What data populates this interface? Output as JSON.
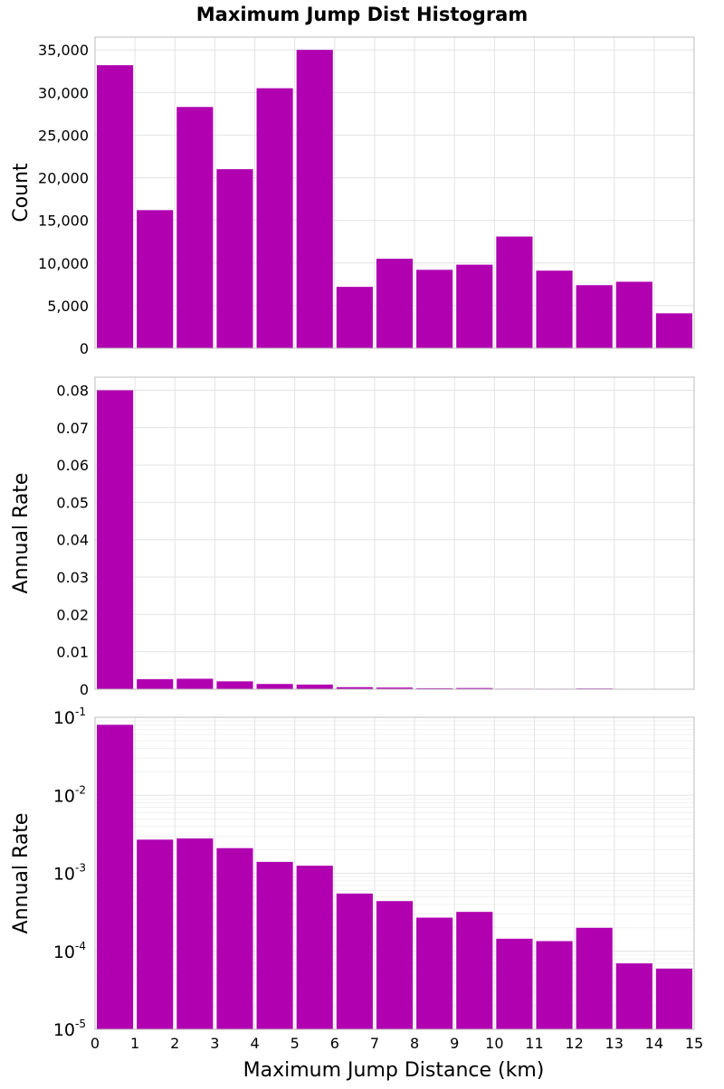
{
  "chart_data": {
    "type": "bar",
    "title": "Maximum Jump Dist Histogram",
    "xlabel": "Maximum Jump Distance (km)",
    "x_ticks": [
      "0",
      "1",
      "2",
      "3",
      "4",
      "5",
      "6",
      "7",
      "8",
      "9",
      "10",
      "11",
      "12",
      "13",
      "14",
      "15"
    ],
    "xlim": [
      0,
      15
    ],
    "bin_width": 1,
    "bar_color": "#b000b0",
    "grid": true,
    "panels": [
      {
        "ylabel": "Count",
        "scale": "linear",
        "ylim": [
          0,
          36500
        ],
        "y_ticks": [
          {
            "value": 0,
            "label": "0"
          },
          {
            "value": 5000,
            "label": "5,000"
          },
          {
            "value": 10000,
            "label": "10,000"
          },
          {
            "value": 15000,
            "label": "15,000"
          },
          {
            "value": 20000,
            "label": "20,000"
          },
          {
            "value": 25000,
            "label": "25,000"
          },
          {
            "value": 30000,
            "label": "30,000"
          },
          {
            "value": 35000,
            "label": "35,000"
          }
        ],
        "values": [
          33200,
          16200,
          28300,
          21000,
          30500,
          35000,
          7200,
          10500,
          9200,
          9800,
          13100,
          9100,
          7400,
          7800,
          4100
        ]
      },
      {
        "ylabel": "Annual Rate",
        "scale": "linear",
        "ylim": [
          0,
          0.0835
        ],
        "y_ticks": [
          {
            "value": 0,
            "label": "0"
          },
          {
            "value": 0.01,
            "label": "0.01"
          },
          {
            "value": 0.02,
            "label": "0.02"
          },
          {
            "value": 0.03,
            "label": "0.03"
          },
          {
            "value": 0.04,
            "label": "0.04"
          },
          {
            "value": 0.05,
            "label": "0.05"
          },
          {
            "value": 0.06,
            "label": "0.06"
          },
          {
            "value": 0.07,
            "label": "0.07"
          },
          {
            "value": 0.08,
            "label": "0.08"
          }
        ],
        "values": [
          0.08,
          0.0027,
          0.0028,
          0.0021,
          0.0014,
          0.00125,
          0.00055,
          0.00044,
          0.00027,
          0.00032,
          0.000145,
          0.000135,
          0.0002,
          7e-05,
          6e-05
        ]
      },
      {
        "ylabel": "Annual Rate",
        "scale": "log",
        "ylim": [
          1e-05,
          0.1
        ],
        "y_ticks": [
          {
            "value": 1e-05,
            "base": "10",
            "exp": "-5"
          },
          {
            "value": 0.0001,
            "base": "10",
            "exp": "-4"
          },
          {
            "value": 0.001,
            "base": "10",
            "exp": "-3"
          },
          {
            "value": 0.01,
            "base": "10",
            "exp": "-2"
          },
          {
            "value": 0.1,
            "base": "10",
            "exp": "-1"
          }
        ],
        "values": [
          0.08,
          0.0027,
          0.0028,
          0.0021,
          0.0014,
          0.00125,
          0.00055,
          0.00044,
          0.00027,
          0.00032,
          0.000145,
          0.000135,
          0.0002,
          7e-05,
          6e-05
        ]
      }
    ]
  }
}
